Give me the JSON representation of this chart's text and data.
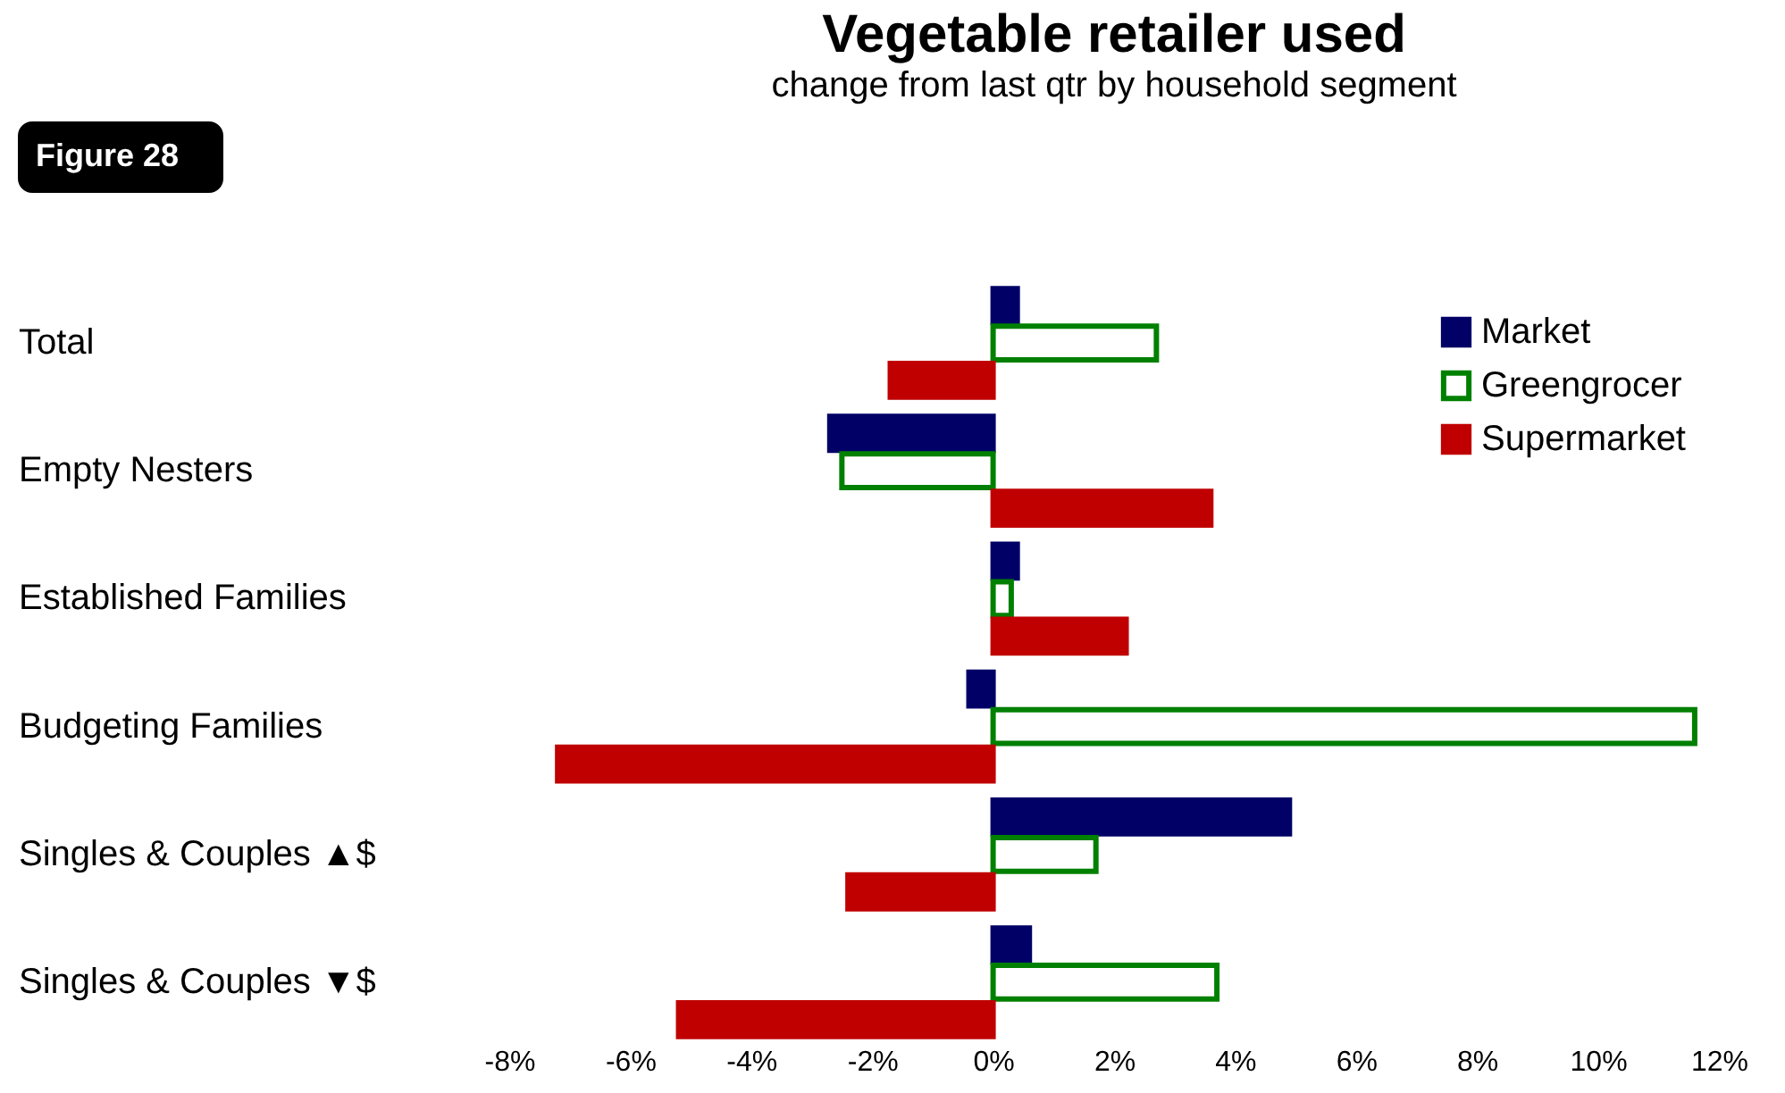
{
  "chart_data": {
    "type": "bar",
    "orientation": "horizontal",
    "title": "Vegetable retailer used",
    "subtitle": "change from last qtr by household segment",
    "annotations": [
      "Figure 28"
    ],
    "categories": [
      "Total",
      "Empty Nesters",
      "Established Families",
      "Budgeting Families",
      "Singles & Couples ▲$",
      "Singles & Couples ▼$"
    ],
    "series": [
      {
        "name": "Market",
        "color": "#000066",
        "values": [
          0.4,
          -2.7,
          0.4,
          -0.4,
          4.9,
          0.6
        ]
      },
      {
        "name": "Greengrocer",
        "color": "#008000",
        "values": [
          2.7,
          -2.5,
          0.3,
          11.6,
          1.7,
          3.7
        ]
      },
      {
        "name": "Supermarket",
        "color": "#c00000",
        "values": [
          -1.7,
          3.6,
          2.2,
          -7.2,
          -2.4,
          -5.2
        ]
      }
    ],
    "xlim": [
      -8,
      12
    ],
    "xticks": [
      {
        "value": -8,
        "label": "-8%"
      },
      {
        "value": -6,
        "label": "-6%"
      },
      {
        "value": -4,
        "label": "-4%"
      },
      {
        "value": -2,
        "label": "-2%"
      },
      {
        "value": 0,
        "label": "0%"
      },
      {
        "value": 2,
        "label": "2%"
      },
      {
        "value": 4,
        "label": "4%"
      },
      {
        "value": 6,
        "label": "6%"
      },
      {
        "value": 8,
        "label": "8%"
      },
      {
        "value": 10,
        "label": "10%"
      },
      {
        "value": 12,
        "label": "12%"
      }
    ],
    "grid": false,
    "legend": "top right"
  }
}
